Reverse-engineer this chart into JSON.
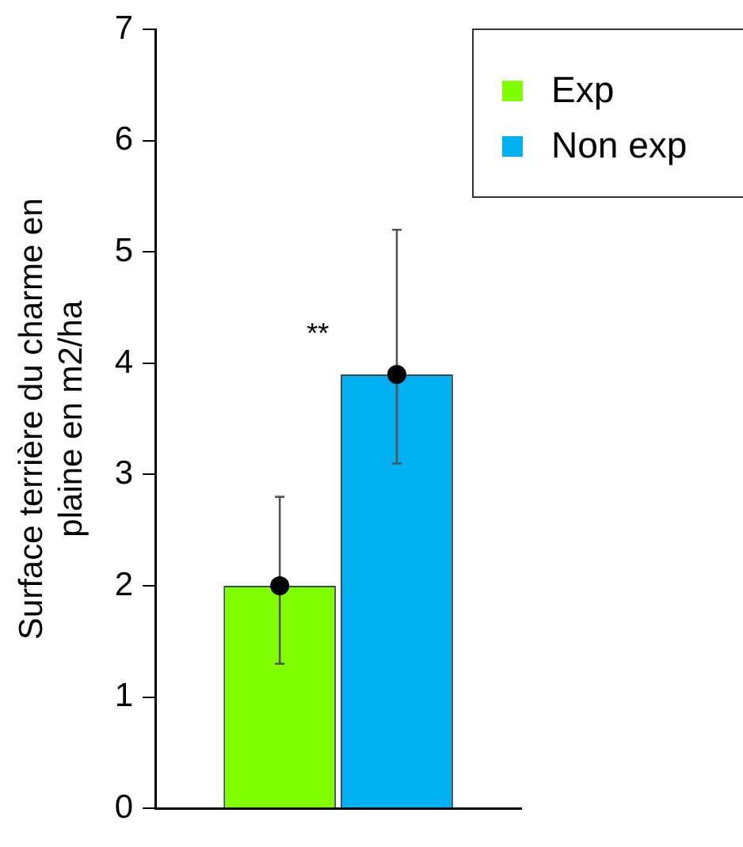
{
  "chart_data": {
    "type": "bar",
    "ylabel": "Surface terrière du charme en\nplaine en m2/ha",
    "categories": [
      null
    ],
    "series": [
      {
        "name": "Exp",
        "color": "#7fff00",
        "values": [
          2.0
        ],
        "errors": [
          [
            1.3,
            2.8
          ]
        ]
      },
      {
        "name": "Non exp",
        "color": "#00b0f0",
        "values": [
          3.9
        ],
        "errors": [
          [
            3.1,
            5.2
          ]
        ]
      },
      {
        "type": "scatter",
        "color": "#000000",
        "values": [
          2.0
        ]
      },
      {
        "type": "scatter",
        "color": "#000000",
        "values": [
          3.9
        ]
      }
    ],
    "ylim": [
      0,
      7
    ],
    "yticks": [
      0,
      1,
      2,
      3,
      4,
      5,
      6,
      7
    ],
    "grid": false,
    "legend": "top right",
    "marker": "circle",
    "annotations": [
      "**"
    ]
  }
}
